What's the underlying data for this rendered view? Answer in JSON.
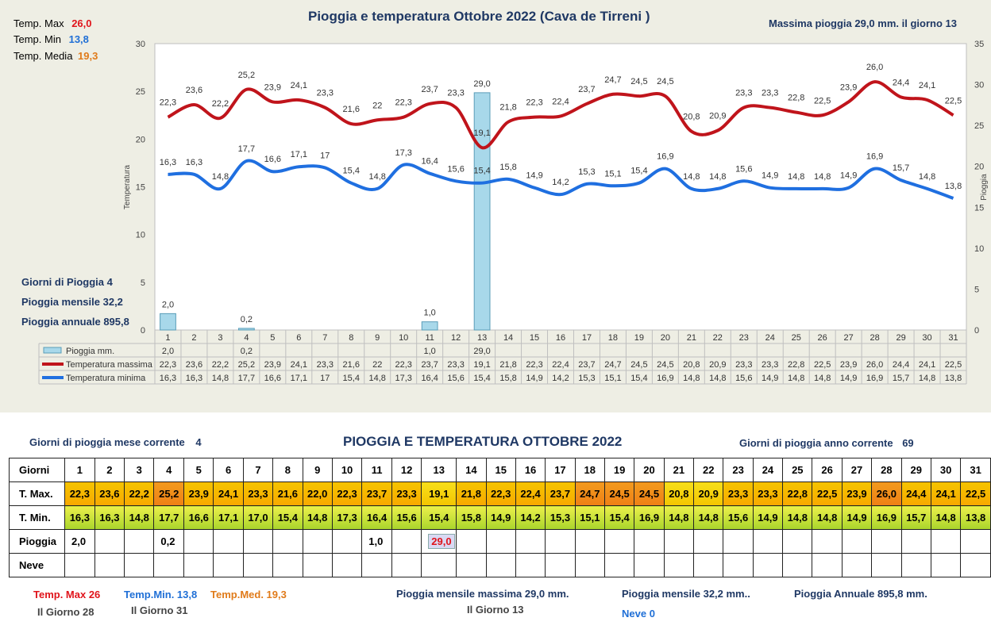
{
  "chart_data": {
    "type": "line",
    "title": "Pioggia e temperatura Ottobre 2022 (Cava de Tirreni )",
    "ylabel": "Temperatura",
    "y2label": "Pioggia",
    "ylim": [
      0,
      30
    ],
    "y2lim": [
      0,
      35
    ],
    "yticks": [
      0,
      5,
      10,
      15,
      20,
      25,
      30
    ],
    "y2ticks": [
      0,
      5,
      10,
      15,
      20,
      25,
      30,
      35
    ],
    "categories": [
      "1",
      "2",
      "3",
      "4",
      "5",
      "6",
      "7",
      "8",
      "9",
      "10",
      "11",
      "12",
      "13",
      "14",
      "15",
      "16",
      "17",
      "18",
      "19",
      "20",
      "21",
      "22",
      "23",
      "24",
      "25",
      "26",
      "27",
      "28",
      "29",
      "30",
      "31"
    ],
    "series": [
      {
        "name": "Pioggia mm.",
        "type": "bar",
        "axis": "right",
        "color": "#a8d8ea",
        "values": [
          2.0,
          null,
          null,
          0.2,
          null,
          null,
          null,
          null,
          null,
          null,
          1.0,
          null,
          29.0,
          null,
          null,
          null,
          null,
          null,
          null,
          null,
          null,
          null,
          null,
          null,
          null,
          null,
          null,
          null,
          null,
          null,
          null
        ],
        "labels": [
          "2,0",
          "",
          "",
          "0,2",
          "",
          "",
          "",
          "",
          "",
          "",
          "1,0",
          "",
          "29,0",
          "",
          "",
          "",
          "",
          "",
          "",
          "",
          "",
          "",
          "",
          "",
          "",
          "",
          "",
          "",
          "",
          "",
          ""
        ]
      },
      {
        "name": "Temperatura massima",
        "type": "line",
        "axis": "left",
        "color": "#c0141b",
        "values": [
          22.3,
          23.6,
          22.2,
          25.2,
          23.9,
          24.1,
          23.3,
          21.6,
          22.0,
          22.3,
          23.7,
          23.3,
          19.1,
          21.8,
          22.3,
          22.4,
          23.7,
          24.7,
          24.5,
          24.5,
          20.8,
          20.9,
          23.3,
          23.3,
          22.8,
          22.5,
          23.9,
          26.0,
          24.4,
          24.1,
          22.5
        ],
        "labels": [
          "22,3",
          "23,6",
          "22,2",
          "25,2",
          "23,9",
          "24,1",
          "23,3",
          "21,6",
          "22",
          "22,3",
          "23,7",
          "23,3",
          "19,1",
          "21,8",
          "22,3",
          "22,4",
          "23,7",
          "24,7",
          "24,5",
          "24,5",
          "20,8",
          "20,9",
          "23,3",
          "23,3",
          "22,8",
          "22,5",
          "23,9",
          "26,0",
          "24,4",
          "24,1",
          "22,5"
        ]
      },
      {
        "name": "Temperatura minima",
        "type": "line",
        "axis": "left",
        "color": "#1f6fe0",
        "values": [
          16.3,
          16.3,
          14.8,
          17.7,
          16.6,
          17.1,
          17.0,
          15.4,
          14.8,
          17.3,
          16.4,
          15.6,
          15.4,
          15.8,
          14.9,
          14.2,
          15.3,
          15.1,
          15.4,
          16.9,
          14.8,
          14.8,
          15.6,
          14.9,
          14.8,
          14.8,
          14.9,
          16.9,
          15.7,
          14.8,
          13.8
        ],
        "labels": [
          "16,3",
          "16,3",
          "14,8",
          "17,7",
          "16,6",
          "17,1",
          "17",
          "15,4",
          "14,8",
          "17,3",
          "16,4",
          "15,6",
          "15,4",
          "15,8",
          "14,9",
          "14,2",
          "15,3",
          "15,1",
          "15,4",
          "16,9",
          "14,8",
          "14,8",
          "15,6",
          "14,9",
          "14,8",
          "14,8",
          "14,9",
          "16,9",
          "15,7",
          "14,8",
          "13,8"
        ]
      }
    ],
    "legend": "table-below"
  },
  "top": {
    "tmax_label": "Temp. Max",
    "tmax_value": "26,0",
    "tmin_label": "Temp. Min",
    "tmin_value": "13,8",
    "tmed_label": "Temp. Media",
    "tmed_value": "19,3",
    "max_rain_text": "Massima pioggia  29,0 mm. il giorno  13",
    "rain_days_label": "Giorni di Pioggia",
    "rain_days_value": "4",
    "monthly_rain_label": "Pioggia mensile",
    "monthly_rain_value": "32,2",
    "annual_rain_label": "Pioggia annuale",
    "annual_rain_value": "895,8"
  },
  "bottom": {
    "title": "PIOGGIA E TEMPERATURA OTTOBRE 2022",
    "rain_days_month_label": "Giorni di pioggia mese corrente",
    "rain_days_month_value": "4",
    "rain_days_year_label": "Giorni di pioggia anno corrente",
    "rain_days_year_value": "69",
    "row_labels": [
      "Giorni",
      "T. Max.",
      "T. Min.",
      "Pioggia",
      "Neve"
    ],
    "tmax_values": [
      "22,3",
      "23,6",
      "22,2",
      "25,2",
      "23,9",
      "24,1",
      "23,3",
      "21,6",
      "22,0",
      "22,3",
      "23,7",
      "23,3",
      "19,1",
      "21,8",
      "22,3",
      "22,4",
      "23,7",
      "24,7",
      "24,5",
      "24,5",
      "20,8",
      "20,9",
      "23,3",
      "23,3",
      "22,8",
      "22,5",
      "23,9",
      "26,0",
      "24,4",
      "24,1",
      "22,5"
    ],
    "tmin_values": [
      "16,3",
      "16,3",
      "14,8",
      "17,7",
      "16,6",
      "17,1",
      "17,0",
      "15,4",
      "14,8",
      "17,3",
      "16,4",
      "15,6",
      "15,4",
      "15,8",
      "14,9",
      "14,2",
      "15,3",
      "15,1",
      "15,4",
      "16,9",
      "14,8",
      "14,8",
      "15,6",
      "14,9",
      "14,8",
      "14,8",
      "14,9",
      "16,9",
      "15,7",
      "14,8",
      "13,8"
    ],
    "rain_values": [
      "2,0",
      "",
      "",
      "0,2",
      "",
      "",
      "",
      "",
      "",
      "",
      "1,0",
      "",
      "29,0",
      "",
      "",
      "",
      "",
      "",
      "",
      "",
      "",
      "",
      "",
      "",
      "",
      "",
      "",
      "",
      "",
      "",
      ""
    ],
    "footer": {
      "tmax_text": "Temp. Max 26",
      "tmax_day": "Il Giorno  28",
      "tmin_text": "Temp.Min. 13,8",
      "tmin_day": "Il Giorno 31",
      "tmed_text": "Temp.Med. 19,3",
      "max_monthly_text": "Pioggia mensile massima  29,0   mm.",
      "max_monthly_day": "Il Giorno 13",
      "monthly_text": "Pioggia mensile  32,2   mm..",
      "annual_text": "Pioggia Annuale  895,8    mm.",
      "snow_text": "Neve 0"
    }
  },
  "colors": {
    "tmax": "#c0141b",
    "tmin": "#1f6fe0",
    "rain": "#a8d8ea",
    "panel": "#eeeee4"
  }
}
